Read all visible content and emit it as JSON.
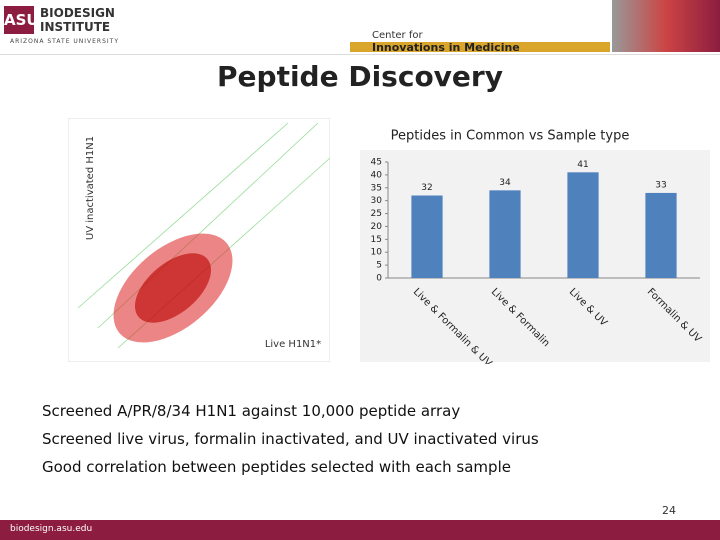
{
  "header": {
    "logo_mark": "ASU",
    "logo_line1": "BIODESIGN",
    "logo_line2": "INSTITUTE",
    "university": "ARIZONA STATE UNIVERSITY",
    "center_line1": "Center for",
    "center_line2": "Innovations in Medicine"
  },
  "title": "Peptide Discovery",
  "scatter": {
    "y_label": "UV inactivated H1N1",
    "x_label": "Live H1N1*"
  },
  "chart": {
    "type": "bar",
    "title": "Peptides in Common vs Sample type",
    "categories": [
      "Live & Formalin & UV",
      "Live & Formalin",
      "Live & UV",
      "Formalin & UV"
    ],
    "values": [
      32,
      34,
      41,
      33
    ],
    "color": "#4f81bd",
    "ylim": [
      0,
      45
    ],
    "yticks": [
      0,
      5,
      10,
      15,
      20,
      25,
      30,
      35,
      40,
      45
    ]
  },
  "bullets": [
    "Screened A/PR/8/34 H1N1 against 10,000 peptide array",
    "Screened live virus, formalin inactivated, and UV inactivated virus",
    "Good correlation between peptides selected with each sample"
  ],
  "page_number": "24",
  "footer": "biodesign.asu.edu"
}
